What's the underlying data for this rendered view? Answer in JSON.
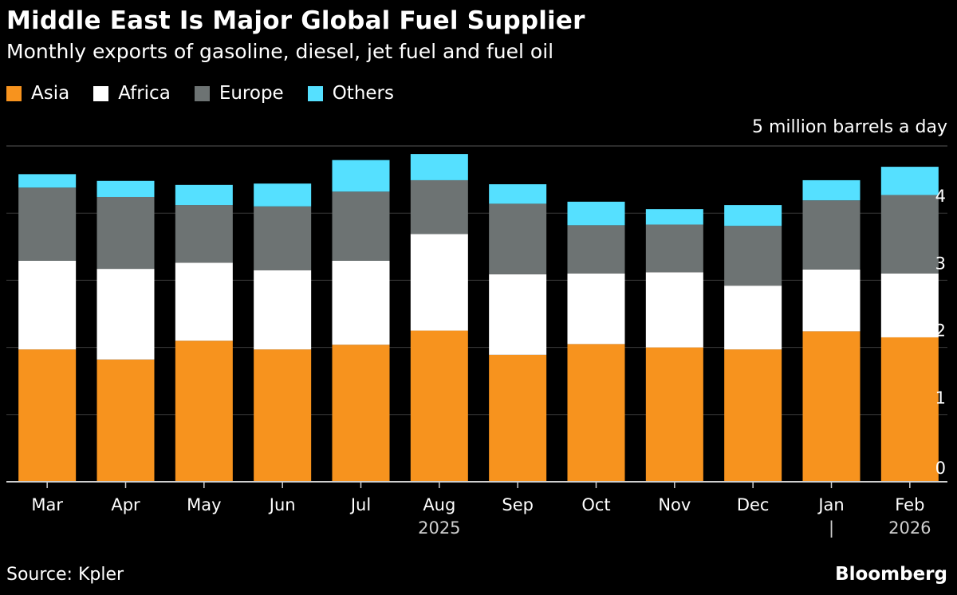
{
  "header": {
    "title": "Middle East Is Major Global Fuel Supplier",
    "subtitle": "Monthly exports of gasoline, diesel, jet fuel and fuel oil"
  },
  "footer": {
    "source": "Source: Kpler",
    "brand": "Bloomberg"
  },
  "colors": {
    "Asia": "#f7931e",
    "Africa": "#ffffff",
    "Europe": "#6d7373",
    "Others": "#55e0ff",
    "grid": "#3a3a3a",
    "axis": "#cfcfcf"
  },
  "chart_data": {
    "type": "bar",
    "stacked": true,
    "title": "Middle East Is Major Global Fuel Supplier",
    "subtitle": "Monthly exports of gasoline, diesel, jet fuel and fuel oil",
    "ylabel": "5 million barrels a day",
    "ylim": [
      0,
      5
    ],
    "yticks": [
      "0",
      "1",
      "2",
      "3",
      "4"
    ],
    "categories": [
      "Mar",
      "Apr",
      "May",
      "Jun",
      "Jul",
      "Aug",
      "Sep",
      "Oct",
      "Nov",
      "Dec",
      "Jan",
      "Feb"
    ],
    "year_labels": [
      {
        "label": "2025",
        "at_category": "Aug"
      },
      {
        "label": "2026",
        "at_category": "Feb"
      }
    ],
    "year_separator": "|",
    "legend": [
      "Asia",
      "Africa",
      "Europe",
      "Others"
    ],
    "series": [
      {
        "name": "Asia",
        "values": [
          1.97,
          1.82,
          2.1,
          1.97,
          2.04,
          2.25,
          1.89,
          2.05,
          2.0,
          1.97,
          2.24,
          2.15
        ]
      },
      {
        "name": "Africa",
        "values": [
          1.32,
          1.35,
          1.16,
          1.18,
          1.25,
          1.44,
          1.2,
          1.05,
          1.12,
          0.95,
          0.92,
          0.95
        ]
      },
      {
        "name": "Europe",
        "values": [
          1.09,
          1.07,
          0.86,
          0.95,
          1.03,
          0.8,
          1.05,
          0.72,
          0.71,
          0.89,
          1.03,
          1.17
        ]
      },
      {
        "name": "Others",
        "values": [
          0.2,
          0.24,
          0.3,
          0.34,
          0.47,
          0.39,
          0.29,
          0.35,
          0.23,
          0.31,
          0.3,
          0.42
        ]
      }
    ]
  }
}
